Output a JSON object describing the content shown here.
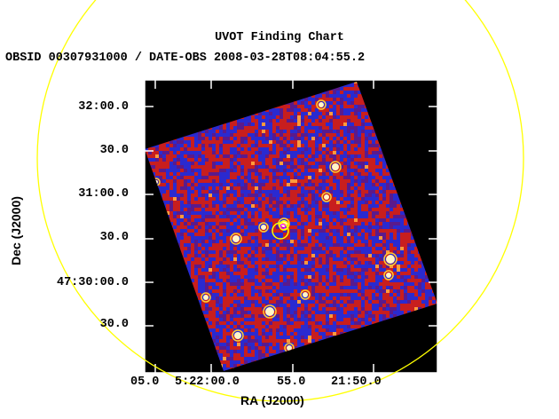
{
  "header": {
    "title": "UVOT Finding Chart",
    "subtitle": "OBSID 00307931000 / DATE-OBS 2008-03-28T08:04:55.2"
  },
  "axes": {
    "xlabel": "RA (J2000)",
    "ylabel": "Dec (J2000)",
    "x_ticks": [
      "05.0",
      "5:22:00.0",
      "55.0",
      "21:50.0"
    ],
    "y_ticks": [
      "32:00.0",
      "30.0",
      "31:00.0",
      "30.0",
      "47:30:00.0",
      "30.0"
    ]
  },
  "colors": {
    "background": "#000000",
    "frame": "#ffffff",
    "circle": "#ffff00",
    "noise_red": "#c81e1e",
    "noise_blue": "#2a2ad0",
    "noise_purple": "#5a1a8c"
  }
}
